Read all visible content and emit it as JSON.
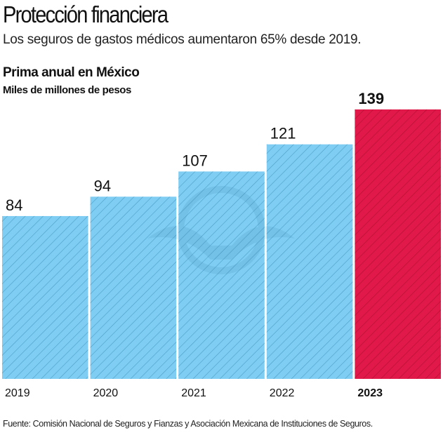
{
  "header": {
    "title": "Protección financiera",
    "subtitle": "Los seguros de gastos médicos aumentaron 65% desde 2019."
  },
  "chart_data": {
    "type": "bar",
    "title": "Prima anual en México",
    "ylabel": "Miles de millones de pesos",
    "xlabel": "",
    "categories": [
      "2019",
      "2020",
      "2021",
      "2022",
      "2023"
    ],
    "values": [
      84,
      94,
      107,
      121,
      139
    ],
    "labels": [
      "84",
      "94",
      "107",
      "121",
      "139"
    ],
    "highlight_index": 4,
    "ylim": [
      0,
      139
    ],
    "grid": false,
    "legend": "none",
    "colors": {
      "default": "#7fcdf3",
      "highlight": "#e0194a",
      "hatch_default": "#4a9ec8",
      "hatch_highlight": "#b0102f"
    }
  },
  "footer": {
    "source": "Fuente: Comisión Nacional de Seguros y Fianzas y Asociación Mexicana de Instituciones de Seguros."
  }
}
